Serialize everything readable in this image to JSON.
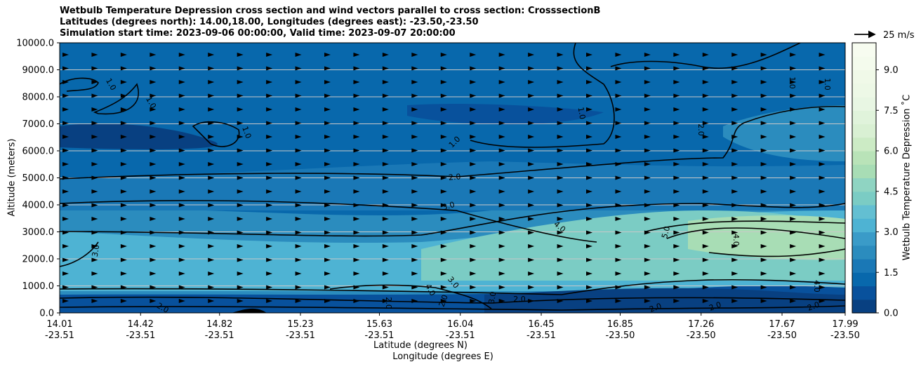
{
  "chart_data": {
    "type": "heatmap",
    "title_lines": [
      "Wetbulb Temperature Depression cross section and wind vectors parallel to cross section: CrosssectionB",
      "Latitudes (degrees north): 14.00,18.00, Longitudes (degrees east): -23.50,-23.50",
      "Simulation start time: 2023-09-06 00:00:00, Valid time: 2023-09-07 20:00:00"
    ],
    "ylabel": "Altitude (meters)",
    "xlabel_lat": "Latitude (degrees N)",
    "xlabel_lon": "Longitude (degrees E)",
    "ylim": [
      0,
      10000
    ],
    "y_ticks": [
      "0.0",
      "1000.0",
      "2000.0",
      "3000.0",
      "4000.0",
      "5000.0",
      "6000.0",
      "7000.0",
      "8000.0",
      "9000.0",
      "10000.0"
    ],
    "x_ticks": [
      {
        "lat": "14.01",
        "lon": "-23.51"
      },
      {
        "lat": "14.42",
        "lon": "-23.51"
      },
      {
        "lat": "14.82",
        "lon": "-23.51"
      },
      {
        "lat": "15.23",
        "lon": "-23.51"
      },
      {
        "lat": "15.63",
        "lon": "-23.51"
      },
      {
        "lat": "16.04",
        "lon": "-23.51"
      },
      {
        "lat": "16.45",
        "lon": "-23.51"
      },
      {
        "lat": "16.85",
        "lon": "-23.50"
      },
      {
        "lat": "17.26",
        "lon": "-23.50"
      },
      {
        "lat": "17.67",
        "lon": "-23.50"
      },
      {
        "lat": "17.99",
        "lon": "-23.50"
      }
    ],
    "xlim": [
      14.01,
      17.99
    ],
    "colorbar": {
      "label": "Wetbulb Temperature Depression ˚C",
      "ticks": [
        "0.0",
        "1.5",
        "3.0",
        "4.5",
        "6.0",
        "7.5",
        "9.0"
      ],
      "range": [
        0,
        10
      ],
      "levels": 20,
      "colors": [
        "#084081",
        "#08519c",
        "#0868ac",
        "#1a78b6",
        "#2b8cbe",
        "#3a9bc8",
        "#4eb3d3",
        "#63bfd2",
        "#7bccc4",
        "#8fd4c2",
        "#a8ddb5",
        "#b9e3b8",
        "#ccebc5",
        "#d9f0d3",
        "#e0f3db",
        "#e8f6e3",
        "#edf8e6",
        "#f0f9e8",
        "#f4fbed",
        "#f7fcf0"
      ]
    },
    "wind_reference": {
      "label": "25 m/s",
      "speed": 25
    },
    "contour_levels": [
      "1.0",
      "2.0",
      "3.0",
      "4.0",
      "5.0"
    ],
    "grid": true
  }
}
